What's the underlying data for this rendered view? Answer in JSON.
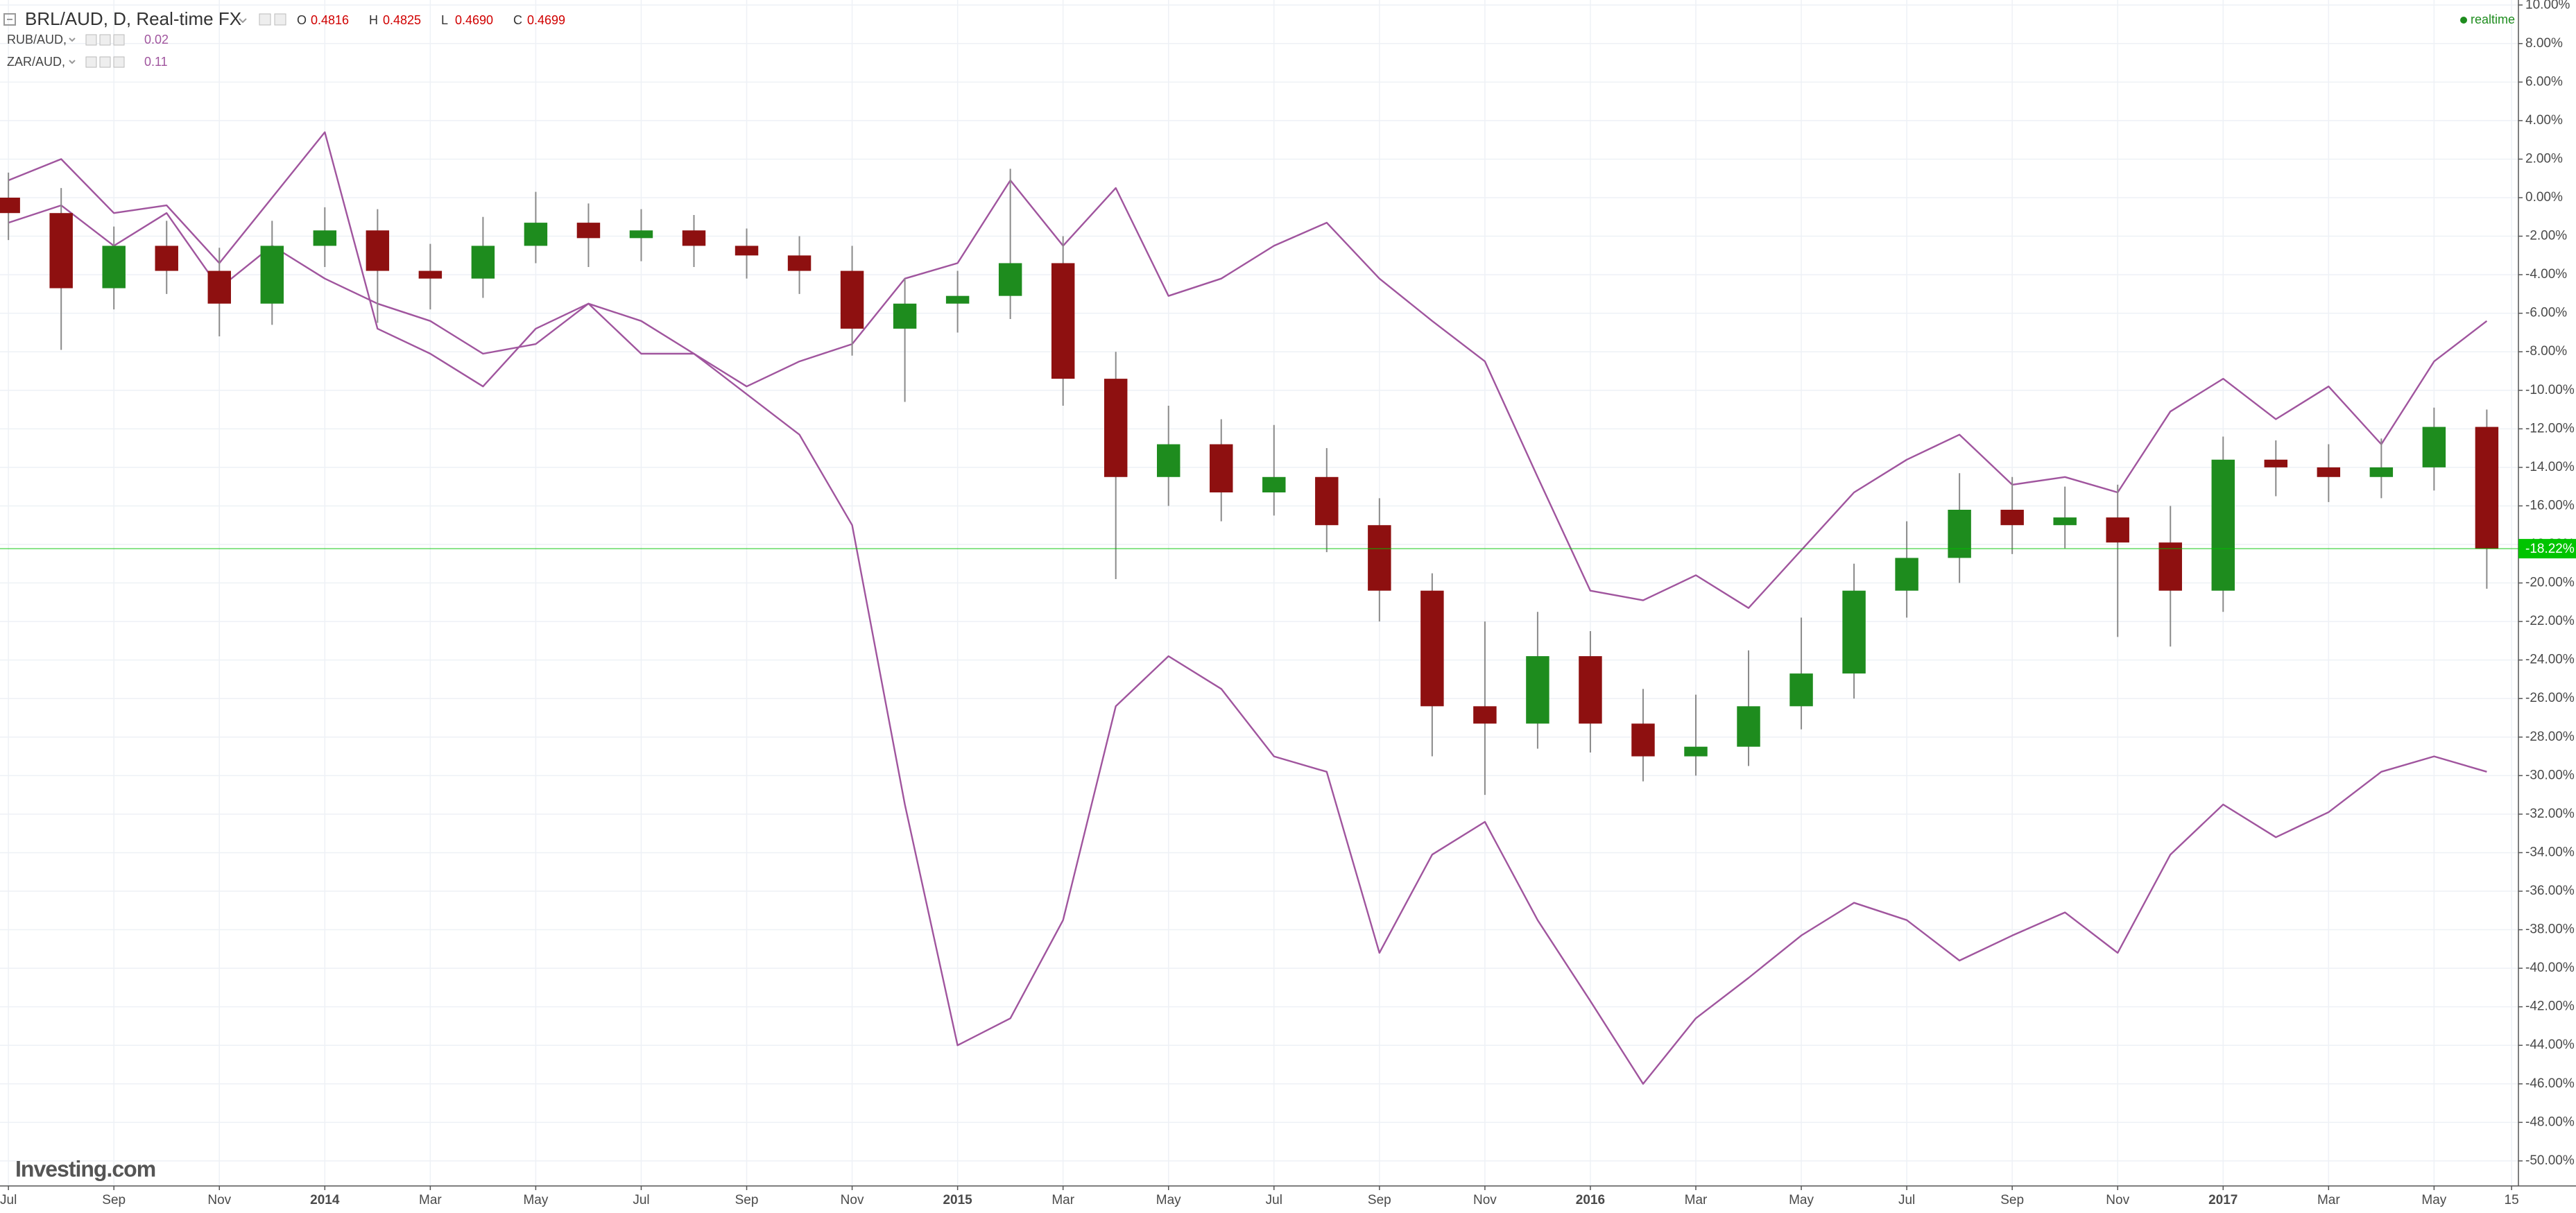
{
  "chart_data": {
    "type": "candlestick",
    "title": "BRL/AUD, D, Real-time FX",
    "ohlc_readout": [
      {
        "key": "O",
        "value": "0.4816"
      },
      {
        "key": "H",
        "value": "0.4825"
      },
      {
        "key": "L",
        "value": "0.4690"
      },
      {
        "key": "C",
        "value": "0.4699"
      }
    ],
    "status": "realtime",
    "watermark": "Investing.com",
    "x": [
      0,
      1,
      2,
      3,
      4,
      5,
      6,
      7,
      8,
      9,
      10,
      11,
      12,
      13,
      14,
      15,
      16,
      17,
      18,
      19,
      20,
      21,
      22,
      23,
      24,
      25,
      26,
      27,
      28,
      29,
      30,
      31,
      32,
      33,
      34,
      35,
      36,
      37,
      38,
      39,
      40,
      41,
      42,
      43,
      44,
      45,
      46,
      47
    ],
    "xlim": [
      -0.16,
      47.6
    ],
    "xticks": [
      {
        "value": 0,
        "label": "Jul"
      },
      {
        "value": 2,
        "label": "Sep"
      },
      {
        "value": 4,
        "label": "Nov"
      },
      {
        "value": 6,
        "label": "2014"
      },
      {
        "value": 8,
        "label": "Mar"
      },
      {
        "value": 10,
        "label": "May"
      },
      {
        "value": 12,
        "label": "Jul"
      },
      {
        "value": 14,
        "label": "Sep"
      },
      {
        "value": 16,
        "label": "Nov"
      },
      {
        "value": 18,
        "label": "2015"
      },
      {
        "value": 20,
        "label": "Mar"
      },
      {
        "value": 22,
        "label": "May"
      },
      {
        "value": 24,
        "label": "Jul"
      },
      {
        "value": 26,
        "label": "Sep"
      },
      {
        "value": 28,
        "label": "Nov"
      },
      {
        "value": 30,
        "label": "2016"
      },
      {
        "value": 32,
        "label": "Mar"
      },
      {
        "value": 34,
        "label": "May"
      },
      {
        "value": 36,
        "label": "Jul"
      },
      {
        "value": 38,
        "label": "Sep"
      },
      {
        "value": 40,
        "label": "Nov"
      },
      {
        "value": 42,
        "label": "2017"
      },
      {
        "value": 44,
        "label": "Mar"
      },
      {
        "value": 46,
        "label": "May"
      },
      {
        "value": 47.47,
        "label": "15"
      }
    ],
    "ylim": [
      -51.3,
      10.26
    ],
    "yticks": [
      {
        "value": 10,
        "label": "10.00%"
      },
      {
        "value": 8,
        "label": "8.00%"
      },
      {
        "value": 6,
        "label": "6.00%"
      },
      {
        "value": 4,
        "label": "4.00%"
      },
      {
        "value": 2,
        "label": "2.00%"
      },
      {
        "value": 0,
        "label": "0.00%"
      },
      {
        "value": -2,
        "label": "-2.00%"
      },
      {
        "value": -4,
        "label": "-4.00%"
      },
      {
        "value": -6,
        "label": "-6.00%"
      },
      {
        "value": -8,
        "label": "-8.00%"
      },
      {
        "value": -10,
        "label": "-10.00%"
      },
      {
        "value": -12,
        "label": "-12.00%"
      },
      {
        "value": -14,
        "label": "-14.00%"
      },
      {
        "value": -16,
        "label": "-16.00%"
      },
      {
        "value": -18,
        "label": "-18.00%"
      },
      {
        "value": -20,
        "label": "-20.00%"
      },
      {
        "value": -22,
        "label": "-22.00%"
      },
      {
        "value": -24,
        "label": "-24.00%"
      },
      {
        "value": -26,
        "label": "-26.00%"
      },
      {
        "value": -28,
        "label": "-28.00%"
      },
      {
        "value": -30,
        "label": "-30.00%"
      },
      {
        "value": -32,
        "label": "-32.00%"
      },
      {
        "value": -34,
        "label": "-34.00%"
      },
      {
        "value": -36,
        "label": "-36.00%"
      },
      {
        "value": -38,
        "label": "-38.00%"
      },
      {
        "value": -40,
        "label": "-40.00%"
      },
      {
        "value": -42,
        "label": "-42.00%"
      },
      {
        "value": -44,
        "label": "-44.00%"
      },
      {
        "value": -46,
        "label": "-46.00%"
      },
      {
        "value": -48,
        "label": "-48.00%"
      },
      {
        "value": -50,
        "label": "-50.00%"
      }
    ],
    "grid": true,
    "last_value": {
      "value": -18.22,
      "label": "-18.22%",
      "color": "#00c400"
    },
    "series": [
      {
        "name": "BRL/AUD",
        "type": "candlestick",
        "up_color": "#1e8c1e",
        "down_color": "#8e1010",
        "wick_color": "#8a8a8a",
        "open": [
          0.0,
          -0.8,
          -4.7,
          -2.5,
          -3.8,
          -5.5,
          -2.5,
          -1.7,
          -3.8,
          -4.2,
          -2.5,
          -1.3,
          -2.1,
          -1.7,
          -2.5,
          -3.0,
          -3.8,
          -6.8,
          -5.5,
          -5.1,
          -3.4,
          -9.4,
          -14.5,
          -12.8,
          -15.3,
          -14.5,
          -17.0,
          -20.4,
          -26.4,
          -27.3,
          -23.8,
          -27.3,
          -29.0,
          -28.5,
          -26.4,
          -24.7,
          -20.4,
          -18.7,
          -16.2,
          -17.0,
          -16.6,
          -17.9,
          -20.4,
          -13.6,
          -14.0,
          -14.5,
          -14.0,
          -11.9
        ],
        "high": [
          1.3,
          0.5,
          -1.5,
          -1.2,
          -2.6,
          -1.2,
          -0.5,
          -0.6,
          -2.4,
          -1.0,
          0.3,
          -0.3,
          -0.6,
          -0.9,
          -1.6,
          -2.0,
          -2.5,
          -4.2,
          -3.8,
          1.5,
          -2.0,
          -8.0,
          -10.8,
          -11.5,
          -11.8,
          -13.0,
          -15.6,
          -19.5,
          -22.0,
          -21.5,
          -22.5,
          -25.5,
          -25.8,
          -23.5,
          -21.8,
          -19.0,
          -16.8,
          -14.3,
          -14.5,
          -15.0,
          -14.9,
          -16.0,
          -12.4,
          -12.6,
          -12.8,
          -12.5,
          -10.9,
          -11.0
        ],
        "low": [
          -2.2,
          -7.9,
          -5.8,
          -5.0,
          -7.2,
          -6.6,
          -3.6,
          -6.5,
          -5.8,
          -5.2,
          -3.4,
          -3.6,
          -3.3,
          -3.6,
          -4.2,
          -5.0,
          -8.2,
          -10.6,
          -7.0,
          -6.3,
          -10.8,
          -19.8,
          -16.0,
          -16.8,
          -16.5,
          -18.4,
          -22.0,
          -29.0,
          -31.0,
          -28.6,
          -28.8,
          -30.3,
          -30.0,
          -29.5,
          -27.6,
          -26.0,
          -21.8,
          -20.0,
          -18.5,
          -18.2,
          -22.8,
          -23.3,
          -21.5,
          -15.5,
          -15.8,
          -15.6,
          -15.2,
          -20.3
        ],
        "close": [
          -0.8,
          -4.7,
          -2.5,
          -3.8,
          -5.5,
          -2.5,
          -1.7,
          -3.8,
          -4.2,
          -2.5,
          -1.3,
          -2.1,
          -1.7,
          -2.5,
          -3.0,
          -3.8,
          -6.8,
          -5.5,
          -5.1,
          -3.4,
          -9.4,
          -14.5,
          -12.8,
          -15.3,
          -14.5,
          -17.0,
          -20.4,
          -26.4,
          -27.3,
          -23.8,
          -27.3,
          -29.0,
          -28.5,
          -26.4,
          -24.7,
          -20.4,
          -18.7,
          -16.2,
          -17.0,
          -16.6,
          -17.9,
          -20.4,
          -13.6,
          -14.0,
          -14.5,
          -14.0,
          -11.9,
          -18.22
        ]
      },
      {
        "name": "RUB/AUD,",
        "type": "line",
        "color": "#a0559e",
        "legend_value": "0.02",
        "values": [
          -1.3,
          -0.4,
          -2.5,
          -0.8,
          -4.7,
          -2.5,
          -4.2,
          -5.5,
          -6.4,
          -8.1,
          -7.6,
          -5.5,
          -8.1,
          -8.1,
          -10.2,
          -12.3,
          -17.0,
          -31.5,
          -44.0,
          -42.6,
          -37.5,
          -26.4,
          -23.8,
          -25.5,
          -29.0,
          -29.8,
          -39.2,
          -34.1,
          -32.4,
          -37.5,
          -41.7,
          -46.0,
          -42.6,
          -40.5,
          -38.3,
          -36.6,
          -37.5,
          -39.6,
          -38.3,
          -37.1,
          -39.2,
          -34.1,
          -31.5,
          -33.2,
          -31.9,
          -29.8,
          -29.0,
          -29.8
        ]
      },
      {
        "name": "ZAR/AUD,",
        "type": "line",
        "color": "#a0559e",
        "legend_value": "0.11",
        "values": [
          0.9,
          2.0,
          -0.8,
          -0.4,
          -3.4,
          0.0,
          3.4,
          -6.8,
          -8.1,
          -9.8,
          -6.8,
          -5.5,
          -6.4,
          -8.1,
          -9.8,
          -8.5,
          -7.6,
          -4.2,
          -3.4,
          0.9,
          -2.5,
          0.5,
          -5.1,
          -4.2,
          -2.5,
          -1.3,
          -4.2,
          -6.4,
          -8.5,
          -14.5,
          -20.4,
          -20.9,
          -19.6,
          -21.3,
          -18.3,
          -15.3,
          -13.6,
          -12.3,
          -14.9,
          -14.5,
          -15.3,
          -11.1,
          -9.4,
          -11.5,
          -9.8,
          -12.8,
          -8.5,
          -6.4
        ]
      }
    ]
  }
}
